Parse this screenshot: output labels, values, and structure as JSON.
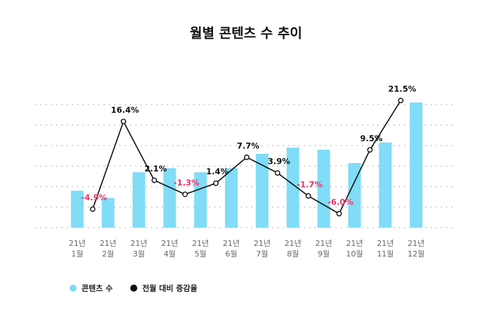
{
  "chart_data": {
    "type": "bar",
    "title": "월별 콘텐츠 수 추이",
    "categories": [
      [
        "21년",
        "1월"
      ],
      [
        "21년",
        "2월"
      ],
      [
        "21년",
        "3월"
      ],
      [
        "21년",
        "4월"
      ],
      [
        "21년",
        "5월"
      ],
      [
        "21년",
        "6월"
      ],
      [
        "21년",
        "7월"
      ],
      [
        "21년",
        "8월"
      ],
      [
        "21년",
        "9월"
      ],
      [
        "21년",
        "10월"
      ],
      [
        "21년",
        "11월"
      ],
      [
        "21년",
        "12월"
      ]
    ],
    "ylim": [
      0,
      6.2
    ],
    "yticks": [
      0,
      1,
      2,
      3,
      4,
      5,
      6
    ],
    "grid": true,
    "y2lim": [
      -9.4,
      21.5
    ],
    "legend": "bottom-left",
    "series": [
      {
        "name": "콘텐츠 수",
        "type": "bar",
        "color": "#80dcf7",
        "values": [
          1.8,
          1.45,
          2.7,
          2.9,
          2.7,
          2.9,
          3.6,
          3.9,
          3.8,
          3.15,
          4.15,
          6.1
        ]
      },
      {
        "name": "전월 대비 증감율",
        "type": "line",
        "axis": "y2",
        "color": "#111111",
        "negative_color": "#e8336b",
        "values": [
          null,
          -4.9,
          16.4,
          2.1,
          -1.3,
          1.4,
          7.7,
          3.9,
          -1.7,
          -6.0,
          9.5,
          21.5
        ],
        "value_labels": [
          null,
          "-4.9%",
          "16.4%",
          "2.1%",
          "-1.3%",
          "1.4%",
          "7.7%",
          "3.9%",
          "-1.7%",
          "-6.0%",
          "9.5%",
          "21.5%"
        ]
      }
    ]
  }
}
